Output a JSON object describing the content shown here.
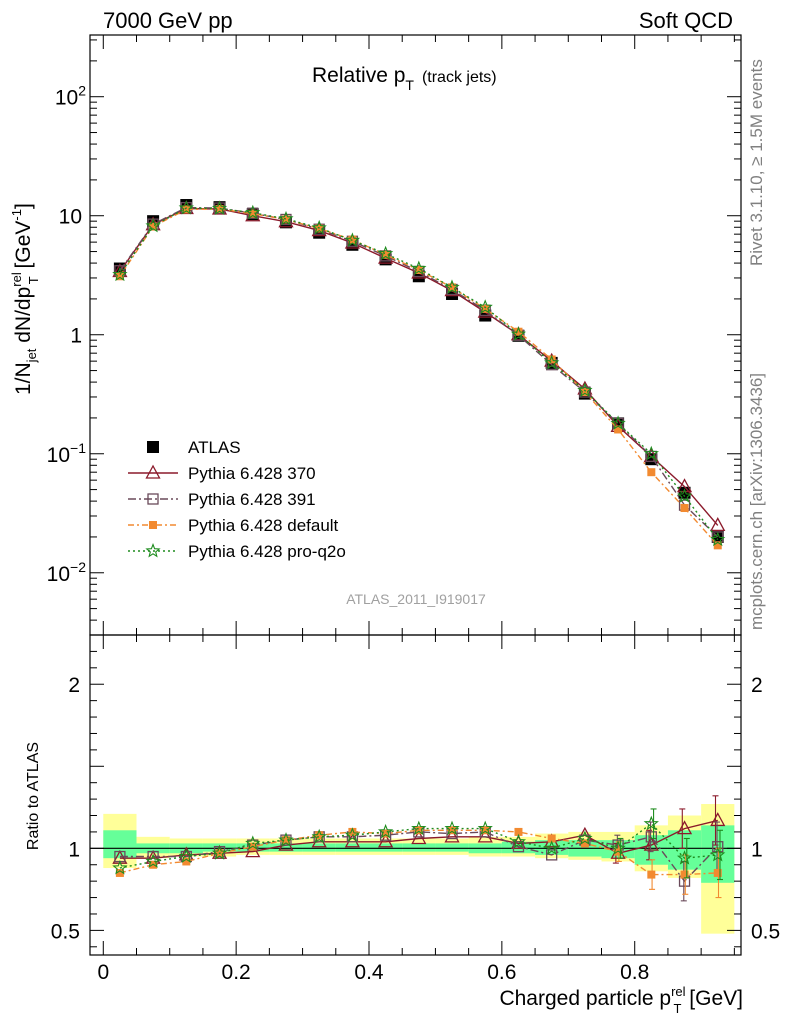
{
  "header": {
    "left": "7000 GeV pp",
    "right": "Soft QCD"
  },
  "side": {
    "rivet": "Rivet 3.1.10, ≥ 1.5M events",
    "mcplots": "mcplots.cern.ch [arXiv:1306.3436]"
  },
  "top_panel": {
    "title_main": "Relative p",
    "title_sub": "T",
    "title_extra": "(track jets)",
    "watermark": "ATLAS_2011_I919017",
    "ylabel_parts": [
      "1/N",
      "jet",
      " dN/dp",
      "rel",
      "T",
      " [GeV",
      "-1",
      "]"
    ]
  },
  "bottom_panel": {
    "ylabel": "Ratio to ATLAS",
    "xlabel_parts": [
      "Charged particle p",
      "rel",
      "T",
      " [GeV]"
    ]
  },
  "chart_data": [
    {
      "type": "line",
      "scale": "log",
      "ylim": [
        0.003,
        330
      ],
      "xlim": [
        -0.02,
        0.96
      ],
      "y_ticks": [
        {
          "v": 100,
          "base": "10",
          "exp": "2"
        },
        {
          "v": 10,
          "label": "10"
        },
        {
          "v": 1,
          "label": "1"
        },
        {
          "v": 0.1,
          "base": "10",
          "exp": "−1"
        },
        {
          "v": 0.01,
          "base": "10",
          "exp": "−2"
        }
      ],
      "x": [
        0.025,
        0.075,
        0.125,
        0.175,
        0.225,
        0.275,
        0.325,
        0.375,
        0.425,
        0.475,
        0.525,
        0.575,
        0.625,
        0.675,
        0.725,
        0.775,
        0.825,
        0.875,
        0.925
      ],
      "series": [
        {
          "name": "ATLAS",
          "color": "#000000",
          "marker": "square-filled",
          "values": [
            3.6,
            9.0,
            12.3,
            11.8,
            10.3,
            8.8,
            7.2,
            5.7,
            4.3,
            3.1,
            2.2,
            1.45,
            0.98,
            0.58,
            0.32,
            0.18,
            0.09,
            0.047,
            0.02
          ]
        },
        {
          "name": "Pythia 6.428 370",
          "color": "#8b1a2b",
          "marker": "triangle-open",
          "dash": "",
          "values": [
            3.4,
            8.4,
            11.5,
            11.4,
            10.0,
            8.9,
            7.5,
            5.9,
            4.4,
            3.3,
            2.35,
            1.55,
            1.0,
            0.6,
            0.35,
            0.17,
            0.095,
            0.053,
            0.025
          ]
        },
        {
          "name": "Pythia 6.428 391",
          "color": "#6a4a5a",
          "marker": "square-open",
          "dash": "8,3,2,3",
          "values": [
            3.45,
            8.5,
            11.7,
            11.6,
            10.5,
            9.3,
            7.7,
            6.1,
            4.6,
            3.4,
            2.4,
            1.6,
            0.99,
            0.56,
            0.33,
            0.18,
            0.095,
            0.037,
            0.02
          ]
        },
        {
          "name": "Pythia 6.428 default",
          "color": "#f28a30",
          "marker": "square-filled-small",
          "dash": "6,3,2,3",
          "values": [
            3.1,
            8.1,
            11.3,
            11.4,
            10.4,
            9.3,
            7.8,
            6.3,
            4.7,
            3.5,
            2.5,
            1.65,
            1.06,
            0.62,
            0.33,
            0.16,
            0.07,
            0.035,
            0.017
          ]
        },
        {
          "name": "Pythia 6.428 pro-q2o",
          "color": "#1e8c1e",
          "marker": "star",
          "dash": "2,3",
          "values": [
            3.2,
            8.2,
            11.6,
            11.5,
            10.6,
            9.4,
            7.9,
            6.2,
            4.8,
            3.6,
            2.5,
            1.7,
            1.01,
            0.58,
            0.34,
            0.18,
            0.1,
            0.044,
            0.019
          ]
        }
      ],
      "legend": "bottom-left"
    },
    {
      "type": "line",
      "scale": "linear",
      "ylim": [
        0.35,
        2.3
      ],
      "xlim": [
        -0.02,
        0.96
      ],
      "y_ticks": [
        {
          "v": 2,
          "label": "2"
        },
        {
          "v": 1,
          "label": "1"
        },
        {
          "v": 0.5,
          "label": "0.5"
        }
      ],
      "x_ticks": [
        {
          "v": 0,
          "label": "0"
        },
        {
          "v": 0.2,
          "label": "0.2"
        },
        {
          "v": 0.4,
          "label": "0.4"
        },
        {
          "v": 0.6,
          "label": "0.6"
        },
        {
          "v": 0.8,
          "label": "0.8"
        }
      ],
      "bands": {
        "edges": [
          0,
          0.05,
          0.1,
          0.15,
          0.2,
          0.25,
          0.3,
          0.35,
          0.4,
          0.45,
          0.5,
          0.55,
          0.6,
          0.65,
          0.7,
          0.75,
          0.8,
          0.85,
          0.9,
          0.95
        ],
        "yellow": [
          [
            0.88,
            1.21
          ],
          [
            0.94,
            1.07
          ],
          [
            0.95,
            1.06
          ],
          [
            0.95,
            1.06
          ],
          [
            0.96,
            1.06
          ],
          [
            0.96,
            1.06
          ],
          [
            0.96,
            1.06
          ],
          [
            0.96,
            1.06
          ],
          [
            0.96,
            1.06
          ],
          [
            0.96,
            1.06
          ],
          [
            0.96,
            1.06
          ],
          [
            0.95,
            1.07
          ],
          [
            0.95,
            1.07
          ],
          [
            0.94,
            1.09
          ],
          [
            0.93,
            1.1
          ],
          [
            0.92,
            1.1
          ],
          [
            0.86,
            1.14
          ],
          [
            0.82,
            1.2
          ],
          [
            0.48,
            1.27
          ]
        ],
        "green": [
          [
            0.94,
            1.11
          ],
          [
            0.97,
            1.03
          ],
          [
            0.97,
            1.03
          ],
          [
            0.98,
            1.03
          ],
          [
            0.98,
            1.03
          ],
          [
            0.98,
            1.03
          ],
          [
            0.98,
            1.03
          ],
          [
            0.98,
            1.03
          ],
          [
            0.98,
            1.03
          ],
          [
            0.98,
            1.03
          ],
          [
            0.98,
            1.03
          ],
          [
            0.97,
            1.03
          ],
          [
            0.97,
            1.04
          ],
          [
            0.96,
            1.05
          ],
          [
            0.95,
            1.05
          ],
          [
            0.94,
            1.05
          ],
          [
            0.9,
            1.08
          ],
          [
            0.87,
            1.11
          ],
          [
            0.79,
            1.14
          ]
        ]
      },
      "x": [
        0.025,
        0.075,
        0.125,
        0.175,
        0.225,
        0.275,
        0.325,
        0.375,
        0.425,
        0.475,
        0.525,
        0.575,
        0.625,
        0.675,
        0.725,
        0.775,
        0.825,
        0.875,
        0.925
      ],
      "series": [
        {
          "name": "Pythia 6.428 370",
          "color": "#8b1a2b",
          "marker": "triangle-open",
          "dash": "",
          "values": [
            0.94,
            0.94,
            0.96,
            0.97,
            0.98,
            1.02,
            1.04,
            1.04,
            1.04,
            1.06,
            1.07,
            1.07,
            1.03,
            1.04,
            1.08,
            0.97,
            1.02,
            1.12,
            1.17
          ]
        },
        {
          "name": "Pythia 6.428 391",
          "color": "#6a4a5a",
          "marker": "square-open",
          "dash": "8,3,2,3",
          "values": [
            0.95,
            0.95,
            0.95,
            0.98,
            1.02,
            1.05,
            1.07,
            1.07,
            1.08,
            1.1,
            1.09,
            1.1,
            1.01,
            0.96,
            1.05,
            1.02,
            1.07,
            0.8,
            1.01
          ]
        },
        {
          "name": "Pythia 6.428 default",
          "color": "#f28a30",
          "marker": "square-filled-small",
          "dash": "6,3,2,3",
          "values": [
            0.85,
            0.9,
            0.92,
            0.97,
            1.01,
            1.05,
            1.08,
            1.1,
            1.09,
            1.11,
            1.11,
            1.11,
            1.1,
            1.06,
            1.03,
            0.98,
            0.84,
            0.84,
            0.85
          ]
        },
        {
          "name": "Pythia 6.428 pro-q2o",
          "color": "#1e8c1e",
          "marker": "star",
          "dash": "2,3",
          "values": [
            0.88,
            0.92,
            0.95,
            0.97,
            1.03,
            1.05,
            1.07,
            1.08,
            1.1,
            1.12,
            1.12,
            1.12,
            1.04,
            1.0,
            1.06,
            1.0,
            1.15,
            0.94,
            0.96
          ]
        }
      ],
      "errors_tail": [
        0.06,
        0.09,
        0.12,
        0.15
      ]
    }
  ]
}
